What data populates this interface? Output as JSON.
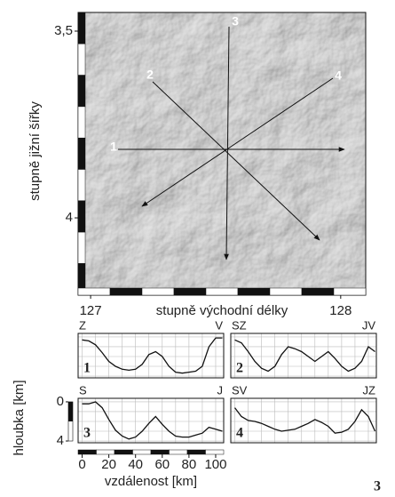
{
  "map": {
    "lat_label": "stupně jižní šířky",
    "lon_label": "stupně východní délky",
    "latlim": [
      3.45,
      4.207
    ],
    "lonlim": [
      126.95,
      128.1
    ],
    "lat_ticks": [
      {
        "value": 3.5,
        "label": "3,5"
      },
      4
    ],
    "lon_ticks": [
      127,
      128
    ],
    "lines": [
      "1",
      "2",
      "3",
      "4"
    ]
  },
  "profiles": {
    "y_label": "hloubka [km]",
    "x_label": "vzdálenost [km]",
    "xlim": [
      -3,
      106
    ],
    "ylim": [
      -0.36,
      4.18
    ],
    "xticks": [
      0,
      20,
      40,
      60,
      80,
      100
    ],
    "yticks": [
      0,
      4
    ],
    "panels": [
      {
        "number": "1",
        "start": "Z",
        "end": "V",
        "x": [
          0,
          5,
          10,
          15,
          20,
          25,
          30,
          35,
          40,
          45,
          50,
          55,
          60,
          65,
          70,
          75,
          80,
          85,
          90,
          95,
          100,
          105
        ],
        "depth": [
          0.3,
          0.4,
          0.8,
          1.6,
          2.5,
          3.0,
          3.3,
          3.4,
          3.3,
          2.8,
          1.8,
          1.5,
          2.0,
          3.0,
          3.6,
          3.7,
          3.6,
          3.5,
          3.0,
          1.0,
          0.1,
          0.1
        ]
      },
      {
        "number": "2",
        "start": "SZ",
        "end": "JV",
        "x": [
          0,
          5,
          10,
          15,
          20,
          25,
          30,
          35,
          40,
          45,
          50,
          55,
          60,
          65,
          70,
          75,
          80,
          85,
          90,
          95,
          100,
          105
        ],
        "depth": [
          0.3,
          0.6,
          1.5,
          2.5,
          3.2,
          3.5,
          3.0,
          1.8,
          1.0,
          1.2,
          1.5,
          2.0,
          2.5,
          2.0,
          1.5,
          2.2,
          3.0,
          3.5,
          3.2,
          2.5,
          1.0,
          1.5
        ]
      },
      {
        "number": "3",
        "start": "S",
        "end": "J",
        "x": [
          0,
          5,
          10,
          15,
          20,
          25,
          30,
          35,
          40,
          45,
          50,
          55,
          60,
          65,
          70,
          75,
          80,
          85,
          90,
          95,
          100,
          105
        ],
        "depth": [
          0.2,
          0.2,
          0.0,
          0.6,
          1.8,
          2.9,
          3.5,
          3.8,
          3.6,
          3.0,
          2.2,
          1.5,
          2.3,
          3.0,
          3.5,
          3.6,
          3.6,
          3.4,
          3.2,
          2.6,
          2.8,
          3.0
        ]
      },
      {
        "number": "4",
        "start": "SV",
        "end": "JZ",
        "x": [
          0,
          5,
          10,
          15,
          20,
          25,
          30,
          35,
          40,
          45,
          50,
          55,
          60,
          65,
          70,
          75,
          80,
          85,
          90,
          95,
          100,
          105
        ],
        "depth": [
          0.6,
          1.5,
          1.9,
          2.0,
          2.2,
          2.5,
          2.8,
          3.0,
          2.9,
          2.8,
          2.5,
          2.2,
          1.8,
          2.1,
          2.5,
          3.2,
          3.1,
          2.8,
          2.0,
          0.8,
          1.5,
          3.0
        ]
      }
    ]
  },
  "figure_number": "3"
}
